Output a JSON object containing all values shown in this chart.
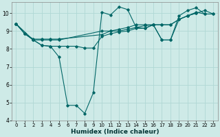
{
  "xlabel": "Humidex (Indice chaleur)",
  "ylabel": "",
  "bg_color": "#ceeae7",
  "grid_color": "#b0d8d4",
  "line_color": "#006666",
  "xlim": [
    -0.5,
    23.5
  ],
  "ylim": [
    4,
    10.6
  ],
  "yticks": [
    4,
    5,
    6,
    7,
    8,
    9,
    10
  ],
  "xticks": [
    0,
    1,
    2,
    3,
    4,
    5,
    6,
    7,
    8,
    9,
    10,
    11,
    12,
    13,
    14,
    15,
    16,
    17,
    18,
    19,
    20,
    21,
    22,
    23
  ],
  "lines": [
    {
      "x": [
        0,
        1,
        2,
        3,
        4,
        5,
        6,
        7,
        8,
        9,
        10,
        11,
        12,
        13,
        14,
        15,
        16,
        17,
        18,
        19,
        20,
        21,
        22
      ],
      "y": [
        9.4,
        8.85,
        8.5,
        8.2,
        8.15,
        7.55,
        4.85,
        4.85,
        4.4,
        5.55,
        10.05,
        9.9,
        10.35,
        10.2,
        9.2,
        9.15,
        9.35,
        8.5,
        8.5,
        9.85,
        10.15,
        10.3,
        9.95
      ]
    },
    {
      "x": [
        0,
        1,
        2,
        3,
        4,
        5,
        6,
        7,
        8,
        9,
        10,
        11,
        12,
        13,
        14,
        15,
        16,
        17,
        18,
        19,
        20,
        21
      ],
      "y": [
        9.4,
        8.85,
        8.5,
        8.2,
        8.15,
        8.15,
        8.15,
        8.15,
        8.05,
        8.05,
        8.7,
        8.85,
        8.95,
        9.0,
        9.15,
        9.15,
        9.35,
        9.35,
        9.35,
        9.65,
        9.85,
        10.0
      ]
    },
    {
      "x": [
        0,
        2,
        3,
        4,
        5,
        10,
        11,
        12,
        13,
        14,
        15,
        16,
        17,
        18,
        19,
        20,
        21,
        22,
        23
      ],
      "y": [
        9.4,
        8.5,
        8.5,
        8.5,
        8.5,
        9.0,
        9.0,
        9.0,
        9.1,
        9.2,
        9.3,
        9.35,
        8.5,
        8.5,
        9.65,
        9.85,
        10.0,
        10.15,
        9.95
      ]
    },
    {
      "x": [
        0,
        1,
        2,
        3,
        4,
        5,
        10,
        11,
        12,
        13,
        14,
        15,
        16,
        17,
        18,
        19,
        20,
        21,
        22,
        23
      ],
      "y": [
        9.4,
        8.85,
        8.55,
        8.55,
        8.55,
        8.55,
        8.8,
        9.0,
        9.1,
        9.2,
        9.35,
        9.35,
        9.35,
        9.35,
        9.35,
        9.65,
        9.85,
        10.05,
        9.95,
        9.95
      ]
    }
  ]
}
